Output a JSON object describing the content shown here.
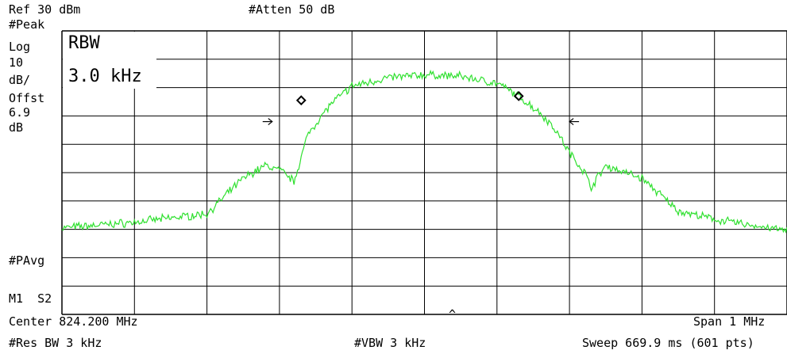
{
  "header": {
    "ref_level": "Ref 30 dBm",
    "attenuation": "#Atten 50 dB"
  },
  "left_panel": {
    "detector": "#Peak",
    "scale_type": "Log",
    "scale_value": "10",
    "scale_unit": "dB/",
    "offset_label": "Offst",
    "offset_value": "6.9",
    "offset_unit": "dB",
    "averaging": "#PAvg",
    "marker_info": "M1  S2"
  },
  "rbw_overlay": {
    "label": "RBW",
    "value": "3.0 kHz"
  },
  "footer": {
    "center_freq": "Center 824.200 MHz",
    "span": "Span 1 MHz",
    "res_bw": "#Res BW 3 kHz",
    "vbw": "#VBW 3 kHz",
    "sweep": "Sweep 669.9 ms (601 pts)",
    "center_caret": "^"
  },
  "colors": {
    "trace": "#2fe02f",
    "grid": "#000000",
    "background": "#ffffff"
  },
  "chart_data": {
    "type": "line",
    "reference_level_dbm": 30,
    "scale_db_per_div": 10,
    "center_frequency_mhz": 824.2,
    "span_mhz": 1,
    "x_range_mhz": [
      823.7,
      824.7
    ],
    "y_range_dbm": [
      -70,
      30
    ],
    "points": 601,
    "grid": true,
    "trace_profile": {
      "x_mhz": [
        823.7,
        823.8,
        823.9,
        823.95,
        823.98,
        824.0,
        824.02,
        824.04,
        824.07,
        824.1,
        824.15,
        824.2,
        824.25,
        824.3,
        824.33,
        824.36,
        824.38,
        824.4,
        824.42,
        824.43,
        824.45,
        824.5,
        824.55,
        824.6,
        824.7
      ],
      "level_dbm": [
        -39.5,
        -37.5,
        -34.5,
        -22.0,
        -17.5,
        -19.0,
        -23.0,
        -6.0,
        4.0,
        10.5,
        13.5,
        14.5,
        14.0,
        11.5,
        7.0,
        1.0,
        -4.5,
        -13.0,
        -19.5,
        -25.0,
        -17.5,
        -22.0,
        -33.5,
        -36.5,
        -40.5
      ]
    },
    "markers": [
      {
        "type": "diamond",
        "x_mhz": 824.03,
        "level_dbm": 5.5
      },
      {
        "type": "diamond",
        "x_mhz": 824.33,
        "level_dbm": 7.0
      }
    ],
    "bandwidth_arrows": [
      {
        "direction": "right",
        "x_mhz": 823.99,
        "level_dbm": -2.0
      },
      {
        "direction": "left",
        "x_mhz": 824.4,
        "level_dbm": -2.0
      }
    ]
  }
}
